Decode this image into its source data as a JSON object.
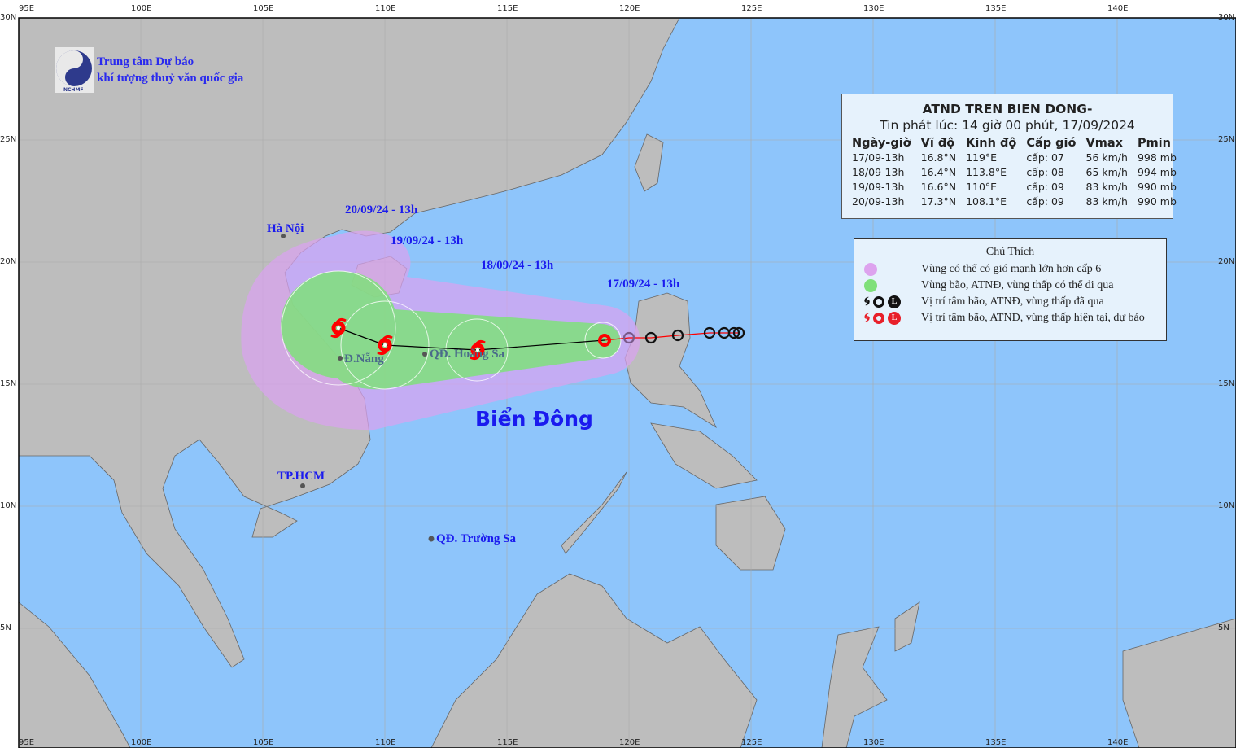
{
  "map": {
    "lon_ticks": [
      "95E",
      "100E",
      "105E",
      "110E",
      "115E",
      "120E",
      "125E",
      "130E",
      "135E",
      "140E"
    ],
    "lat_ticks": [
      "30N",
      "25N",
      "20N",
      "15N",
      "10N",
      "5N"
    ],
    "colors": {
      "sea": "#8ec5fb",
      "land": "#bdbdbd",
      "strong_wind_zone": "#d9a2f0",
      "storm_zone": "#7fe07a",
      "current_forecast": "#ff0000",
      "past": "#111111"
    }
  },
  "logo": {
    "text": "NCHMF",
    "line1": "Trung tâm Dự báo",
    "line2": "khí tượng thuỷ văn quốc gia"
  },
  "info": {
    "title": "ATND TREN BIEN DONG-",
    "issued": "Tin phát lúc: 14 giờ 00 phút, 17/09/2024",
    "headers": [
      "Ngày-giờ",
      "Vĩ độ",
      "Kinh độ",
      "Cấp gió",
      "Vmax",
      "Pmin"
    ],
    "rows": [
      [
        "17/09-13h",
        "16.8°N",
        "119°E",
        "cấp: 07",
        "56 km/h",
        "998 mb"
      ],
      [
        "18/09-13h",
        "16.4°N",
        "113.8°E",
        "cấp: 08",
        "65 km/h",
        "994 mb"
      ],
      [
        "19/09-13h",
        "16.6°N",
        "110°E",
        "cấp: 09",
        "83 km/h",
        "990 mb"
      ],
      [
        "20/09-13h",
        "17.3°N",
        "108.1°E",
        "cấp: 09",
        "83 km/h",
        "990 mb"
      ]
    ]
  },
  "legend": {
    "title": "Chú Thích",
    "items": [
      {
        "icon": "pink-circle",
        "text": "Vùng có thể có gió mạnh lớn hơn cấp 6"
      },
      {
        "icon": "green-circle",
        "text": "Vùng bão, ATNĐ, vùng thấp có thể đi qua"
      },
      {
        "icon": "black-storm-symbols",
        "text": "Vị trí tâm bão, ATNĐ, vùng thấp đã qua"
      },
      {
        "icon": "red-storm-symbols",
        "text": "Vị trí tâm bão, ATNĐ, vùng thấp hiện tại, dự báo"
      }
    ]
  },
  "track": {
    "forecast": [
      {
        "label": "17/09/24 - 13h",
        "lat": 16.8,
        "lon": 119.0
      },
      {
        "label": "18/09/24 - 13h",
        "lat": 16.4,
        "lon": 113.8
      },
      {
        "label": "19/09/24 - 13h",
        "lat": 16.6,
        "lon": 110.0
      },
      {
        "label": "20/09/24 - 13h",
        "lat": 17.3,
        "lon": 108.1
      }
    ],
    "past": [
      {
        "lat": 16.9,
        "lon": 120.0
      },
      {
        "lat": 16.9,
        "lon": 120.9
      },
      {
        "lat": 17.0,
        "lon": 122.0
      },
      {
        "lat": 17.1,
        "lon": 123.3
      },
      {
        "lat": 17.1,
        "lon": 123.9
      },
      {
        "lat": 17.1,
        "lon": 124.3
      },
      {
        "lat": 17.1,
        "lon": 124.5
      }
    ]
  },
  "places": {
    "hanoi": "Hà Nội",
    "danang": "Đ.Nẵng",
    "hoangsa": "QĐ. Hoàng Sa",
    "hcm": "TP.HCM",
    "truongsa": "QĐ. Trường Sa",
    "sea": "Biển Đông"
  }
}
